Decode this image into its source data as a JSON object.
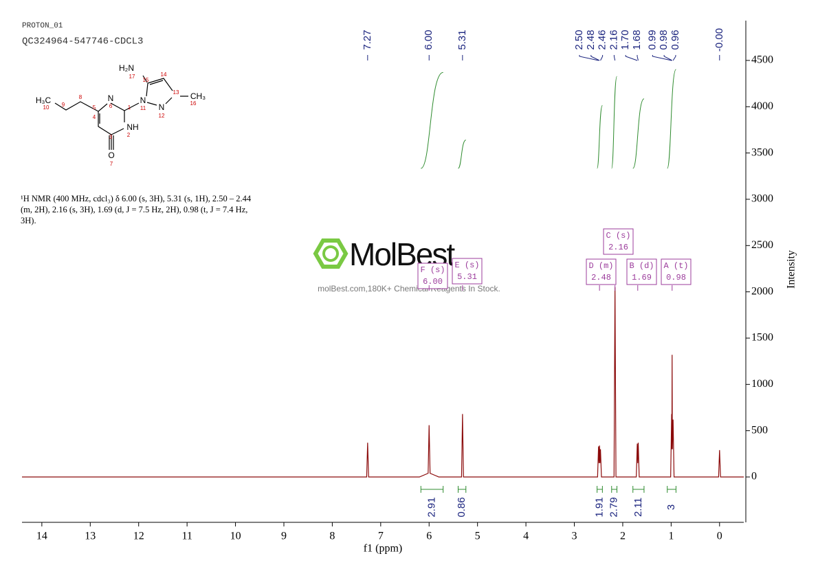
{
  "header": {
    "experiment": "PROTON_01",
    "sample": "QC324964-547746-CDCL3"
  },
  "description": "¹H NMR (400 MHz, cdcl₃) δ 6.00 (s, 3H), 5.31 (s, 1H), 2.50 – 2.44 (m, 2H), 2.16 (s, 3H), 1.69 (d, J = 7.5 Hz, 2H), 0.98 (t, J = 7.4 Hz, 3H).",
  "watermark": {
    "logo": "MolBest",
    "tagline": "molBest.com,180K+ Chemical Reagents In Stock."
  },
  "structure": {
    "atoms": [
      "H₂N",
      "17",
      "15",
      "14",
      "13",
      "CH₃",
      "16",
      "N",
      "11",
      "N",
      "12",
      "N",
      "6",
      "1",
      "NH",
      "2",
      "H₃C",
      "10",
      "9",
      "8",
      "5",
      "4",
      "3",
      "O",
      "7"
    ]
  },
  "chart_data": {
    "type": "line",
    "xlabel": "f1 (ppm)",
    "ylabel": "Intensity",
    "xlim": [
      14.41,
      -0.5
    ],
    "xticks": [
      14,
      13,
      12,
      11,
      10,
      9,
      8,
      7,
      6,
      5,
      4,
      3,
      2,
      1,
      0
    ],
    "ylim": [
      -490,
      4930
    ],
    "yticks": [
      0,
      500,
      1000,
      1500,
      2000,
      2500,
      3000,
      3500,
      4000,
      4500
    ],
    "series": [
      {
        "color": "#8b0a0a",
        "x": [
          14.41,
          7.29,
          7.27,
          7.25,
          6.2,
          6.02,
          6.0,
          5.98,
          5.8,
          5.33,
          5.31,
          5.29,
          2.52,
          2.5,
          2.49,
          2.48,
          2.47,
          2.46,
          2.44,
          2.18,
          2.16,
          2.14,
          1.72,
          1.7,
          1.69,
          1.68,
          1.66,
          1.01,
          0.99,
          0.985,
          0.98,
          0.975,
          0.96,
          0.94,
          0.02,
          0,
          -0.02,
          -0.5
        ],
        "values": [
          0,
          0,
          370,
          0,
          0,
          40,
          560,
          40,
          0,
          0,
          680,
          0,
          0,
          330,
          150,
          340,
          150,
          300,
          0,
          0,
          2050,
          0,
          0,
          360,
          150,
          370,
          0,
          0,
          680,
          300,
          1320,
          300,
          620,
          0,
          0,
          290,
          0,
          0
        ]
      }
    ],
    "peak_labels": [
      {
        "value": 7.27,
        "label": "7.27"
      },
      {
        "value": 6,
        "label": "6.00"
      },
      {
        "value": 5.31,
        "label": "5.31"
      },
      {
        "value": 2.5,
        "label": "2.50"
      },
      {
        "value": 2.48,
        "label": "2.48"
      },
      {
        "value": 2.46,
        "label": "2.46"
      },
      {
        "value": 2.16,
        "label": "2.16"
      },
      {
        "value": 1.7,
        "label": "1.70"
      },
      {
        "value": 1.68,
        "label": "1.68"
      },
      {
        "value": 0.99,
        "label": "0.99"
      },
      {
        "value": 0.98,
        "label": "0.98"
      },
      {
        "value": 0.96,
        "label": "0.96"
      },
      {
        "value": 0,
        "label": "-0.00"
      }
    ],
    "multiplets": [
      {
        "name": "F (s)",
        "shift": {
          "value": 6,
          "label": "6.00"
        }
      },
      {
        "name": "E (s)",
        "shift": {
          "value": 5.31,
          "label": "5.31"
        }
      },
      {
        "name": "D (m)",
        "shift": {
          "value": 2.48,
          "label": "2.48"
        }
      },
      {
        "name": "C (s)",
        "shift": {
          "value": 2.16,
          "label": "2.16"
        }
      },
      {
        "name": "B (d)",
        "shift": {
          "value": 1.69,
          "label": "1.69"
        }
      },
      {
        "name": "A (t)",
        "shift": {
          "value": 0.98,
          "label": "0.98"
        }
      }
    ],
    "integrals": [
      {
        "from": 6.17,
        "to": 5.71,
        "value": 2.91
      },
      {
        "from": 5.4,
        "to": 5.24,
        "value": 0.86
      },
      {
        "from": 2.53,
        "to": 2.42,
        "value": 1.91
      },
      {
        "from": 2.23,
        "to": 2.12,
        "value": 2.79
      },
      {
        "from": 1.79,
        "to": 1.56,
        "value": 2.11
      },
      {
        "from": 1.08,
        "to": 0.9,
        "value": 3.0
      }
    ]
  }
}
